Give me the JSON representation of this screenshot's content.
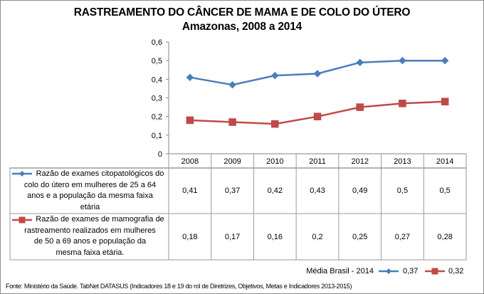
{
  "chart_data": {
    "type": "line",
    "title": "RASTREAMENTO DO CÂNCER DE MAMA E DE COLO DO ÚTERO",
    "subtitle": "Amazonas, 2008 a 2014",
    "categories": [
      "2008",
      "2009",
      "2010",
      "2011",
      "2012",
      "2013",
      "2014"
    ],
    "ylim": [
      0,
      0.6
    ],
    "yticks": [
      0,
      0.1,
      0.2,
      0.3,
      0.4,
      0.5,
      0.6
    ],
    "ytick_labels": [
      "0",
      "0,1",
      "0,2",
      "0,3",
      "0,4",
      "0,5",
      "0,6"
    ],
    "grid": false,
    "legend": "data-table",
    "series": [
      {
        "name": "Razão de exames citopatológicos do colo do útero em mulheres de 25 a 64 anos e a população da mesma faixa etária",
        "name_lines": [
          "Razão de exames citopatológicos do",
          "colo do útero em mulheres de 25 a 64",
          "anos e a população da mesma faixa",
          "etária"
        ],
        "color": "#4a7ebb",
        "marker": "diamond",
        "values": [
          0.41,
          0.37,
          0.42,
          0.43,
          0.49,
          0.5,
          0.5
        ],
        "value_labels": [
          "0,41",
          "0,37",
          "0,42",
          "0,43",
          "0,49",
          "0,5",
          "0,5"
        ]
      },
      {
        "name": "Razão de exames de mamografia de rastreamento realizados em mulheres de 50 a 69 anos e população da mesma faixa etária.",
        "name_lines": [
          "Razão de exames de mamografia de",
          "rastreamento realizados em mulheres",
          "de 50 a 69 anos e população da",
          "mesma faixa etária."
        ],
        "color": "#be4b48",
        "marker": "square",
        "values": [
          0.18,
          0.17,
          0.16,
          0.2,
          0.25,
          0.27,
          0.28
        ],
        "value_labels": [
          "0,18",
          "0,17",
          "0,16",
          "0,2",
          "0,25",
          "0,27",
          "0,28"
        ]
      }
    ],
    "annotations": {
      "media_label": "Média Brasil - 2014",
      "media_values": [
        "0,37",
        "0,32"
      ]
    },
    "source": "Fonte: Ministério da Saúde. TabNet DATASUS (Indicadores 18 e 19 do rol de Diretrizes, Objetivos, Metas e Indicadores 2013-2015)"
  }
}
